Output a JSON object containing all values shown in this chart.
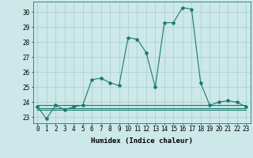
{
  "title": "",
  "xlabel": "Humidex (Indice chaleur)",
  "ylabel": "",
  "x": [
    0,
    1,
    2,
    3,
    4,
    5,
    6,
    7,
    8,
    9,
    10,
    11,
    12,
    13,
    14,
    15,
    16,
    17,
    18,
    19,
    20,
    21,
    22,
    23
  ],
  "y_main": [
    23.7,
    22.9,
    23.8,
    23.5,
    23.7,
    23.8,
    25.5,
    25.6,
    25.3,
    25.1,
    28.3,
    28.2,
    27.3,
    25.0,
    29.3,
    29.3,
    30.3,
    30.2,
    25.3,
    23.8,
    24.0,
    24.1,
    24.0,
    23.7
  ],
  "y_flat1": [
    23.8,
    23.8,
    23.8,
    23.8,
    23.8,
    23.8,
    23.8,
    23.8,
    23.8,
    23.8,
    23.8,
    23.8,
    23.8,
    23.8,
    23.8,
    23.8,
    23.8,
    23.8,
    23.8,
    23.8,
    23.8,
    23.8,
    23.8,
    23.8
  ],
  "y_flat2": [
    23.5,
    23.5,
    23.5,
    23.5,
    23.5,
    23.5,
    23.5,
    23.5,
    23.5,
    23.5,
    23.5,
    23.5,
    23.5,
    23.5,
    23.5,
    23.5,
    23.5,
    23.5,
    23.5,
    23.5,
    23.5,
    23.5,
    23.5,
    23.5
  ],
  "y_flat3": [
    23.6,
    23.6,
    23.6,
    23.6,
    23.6,
    23.6,
    23.6,
    23.6,
    23.6,
    23.6,
    23.6,
    23.6,
    23.6,
    23.6,
    23.6,
    23.6,
    23.6,
    23.6,
    23.6,
    23.6,
    23.6,
    23.6,
    23.6,
    23.6
  ],
  "line_color": "#1a7a6e",
  "bg_color": "#cce8e8",
  "grid_color": "#aacccc",
  "ylim": [
    22.6,
    30.7
  ],
  "xlim": [
    -0.5,
    23.5
  ],
  "yticks": [
    23,
    24,
    25,
    26,
    27,
    28,
    29,
    30
  ],
  "xticks": [
    0,
    1,
    2,
    3,
    4,
    5,
    6,
    7,
    8,
    9,
    10,
    11,
    12,
    13,
    14,
    15,
    16,
    17,
    18,
    19,
    20,
    21,
    22,
    23
  ],
  "marker": "*",
  "markersize": 3,
  "linewidth": 0.8,
  "tick_fontsize": 5.5,
  "xlabel_fontsize": 6.5
}
